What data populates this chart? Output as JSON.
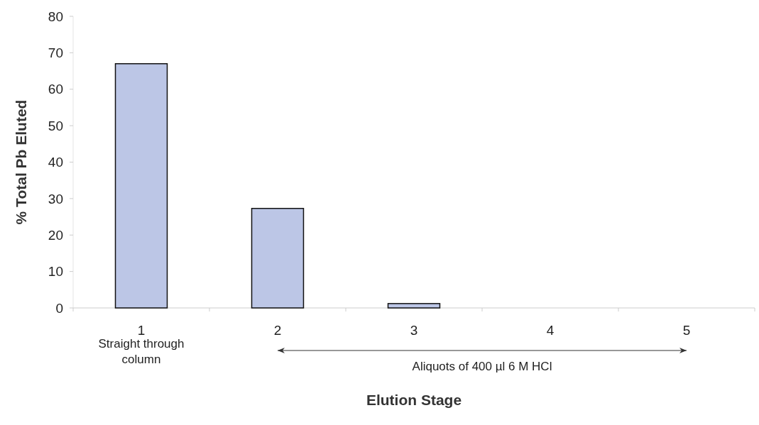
{
  "chart_data": {
    "type": "bar",
    "xlabel": "Elution Stage",
    "ylabel": "% Total Pb Eluted",
    "categories": [
      "1",
      "2",
      "3",
      "4",
      "5"
    ],
    "values": [
      67,
      27.3,
      1.2,
      0,
      0
    ],
    "color": "#bcc6e6",
    "ylim": [
      0,
      80
    ],
    "yticks": [
      0,
      10,
      20,
      30,
      40,
      50,
      60,
      70,
      80
    ],
    "grid": false,
    "annotations": [
      "Straight through column",
      "Aliquots of 400 µl 6 M HCl"
    ]
  }
}
